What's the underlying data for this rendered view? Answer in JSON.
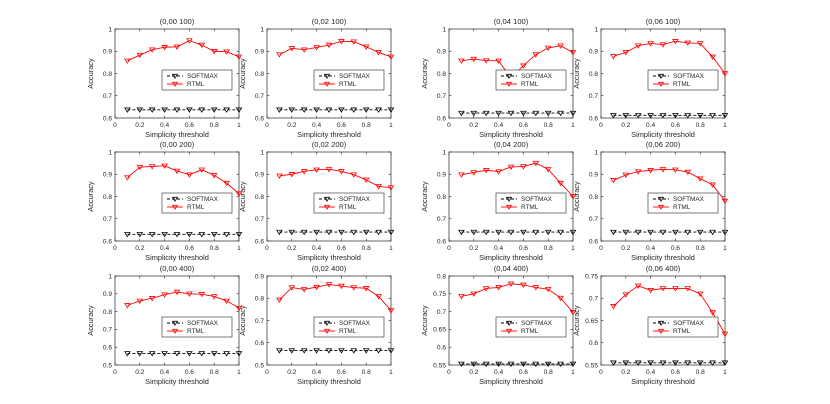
{
  "figure": {
    "colors": {
      "rtml": "#ff0000",
      "softmax": "#000000",
      "axis": "#262626"
    }
  },
  "chart_data": [
    {
      "type": "line",
      "title": "(0,00  100)",
      "xlabel": "Simplicity threshold",
      "ylabel": "Accuracy",
      "xlim": [
        0,
        1
      ],
      "ylim": [
        0.6,
        1
      ],
      "xticks": [
        "0",
        "0.2",
        "0.4",
        "0.6",
        "0.8",
        "1"
      ],
      "yticks": [
        "0.6",
        "0.7",
        "0.8",
        "0.9",
        "1"
      ],
      "legend_position": "center-right",
      "x": [
        0.1,
        0.2,
        0.3,
        0.4,
        0.5,
        0.6,
        0.7,
        0.8,
        0.9,
        1
      ],
      "series": [
        {
          "name": "SOFTMAX",
          "marker": "triangle-down",
          "values": [
            0.637,
            0.637,
            0.637,
            0.637,
            0.637,
            0.637,
            0.637,
            0.637,
            0.637,
            0.637
          ]
        },
        {
          "name": "RTML",
          "marker": "triangle-down",
          "values": [
            0.857,
            0.883,
            0.907,
            0.918,
            0.92,
            0.948,
            0.928,
            0.9,
            0.898,
            0.875
          ]
        }
      ]
    },
    {
      "type": "line",
      "title": "(0,02  100)",
      "xlabel": "Simplicity threshold",
      "ylabel": "Accuracy",
      "xlim": [
        0,
        1
      ],
      "ylim": [
        0.6,
        1
      ],
      "xticks": [
        "0",
        "0.2",
        "0.4",
        "0.6",
        "0.8",
        "1"
      ],
      "yticks": [
        "0.6",
        "0.7",
        "0.8",
        "0.9",
        "1"
      ],
      "legend_position": "center-right",
      "x": [
        0.1,
        0.2,
        0.3,
        0.4,
        0.5,
        0.6,
        0.7,
        0.8,
        0.9,
        1
      ],
      "series": [
        {
          "name": "SOFTMAX",
          "marker": "triangle-down",
          "values": [
            0.637,
            0.637,
            0.637,
            0.637,
            0.637,
            0.637,
            0.637,
            0.637,
            0.637,
            0.637
          ]
        },
        {
          "name": "RTML",
          "marker": "triangle-down",
          "values": [
            0.885,
            0.913,
            0.907,
            0.917,
            0.928,
            0.945,
            0.943,
            0.92,
            0.895,
            0.875
          ]
        }
      ]
    },
    {
      "type": "line",
      "title": "(0,04  100)",
      "xlabel": "Simplicity threshold",
      "ylabel": "Accuracy",
      "xlim": [
        0,
        1
      ],
      "ylim": [
        0.6,
        1
      ],
      "xticks": [
        "0",
        "0.2",
        "0.4",
        "0.6",
        "0.8",
        "1"
      ],
      "yticks": [
        "0.6",
        "0.7",
        "0.8",
        "0.9",
        "1"
      ],
      "legend_position": "center-right",
      "x": [
        0.1,
        0.2,
        0.3,
        0.4,
        0.5,
        0.6,
        0.7,
        0.8,
        0.9,
        1
      ],
      "series": [
        {
          "name": "SOFTMAX",
          "marker": "triangle-down",
          "values": [
            0.622,
            0.622,
            0.622,
            0.622,
            0.622,
            0.622,
            0.622,
            0.622,
            0.622,
            0.622
          ]
        },
        {
          "name": "RTML",
          "marker": "triangle-down",
          "values": [
            0.857,
            0.865,
            0.858,
            0.857,
            0.78,
            0.835,
            0.885,
            0.915,
            0.925,
            0.895
          ]
        }
      ]
    },
    {
      "type": "line",
      "title": "(0,06  100)",
      "xlabel": "Simplicity threshold",
      "ylabel": "Accuracy",
      "xlim": [
        0,
        1
      ],
      "ylim": [
        0.6,
        1
      ],
      "xticks": [
        "0",
        "0.2",
        "0.4",
        "0.6",
        "0.8",
        "1"
      ],
      "yticks": [
        "0.6",
        "0.7",
        "0.8",
        "0.9",
        "1"
      ],
      "legend_position": "center-right",
      "x": [
        0.1,
        0.2,
        0.3,
        0.4,
        0.5,
        0.6,
        0.7,
        0.8,
        0.9,
        1
      ],
      "series": [
        {
          "name": "SOFTMAX",
          "marker": "triangle-down",
          "values": [
            0.612,
            0.612,
            0.612,
            0.612,
            0.612,
            0.612,
            0.612,
            0.612,
            0.612,
            0.612
          ]
        },
        {
          "name": "RTML",
          "marker": "triangle-down",
          "values": [
            0.877,
            0.895,
            0.925,
            0.935,
            0.93,
            0.945,
            0.938,
            0.935,
            0.875,
            0.8
          ]
        }
      ]
    },
    {
      "type": "line",
      "title": "(0,00  200)",
      "xlabel": "Simplicity threshold",
      "ylabel": "Accuracy",
      "xlim": [
        0,
        1
      ],
      "ylim": [
        0.6,
        1
      ],
      "xticks": [
        "0",
        "0.2",
        "0.4",
        "0.6",
        "0.8",
        "1"
      ],
      "yticks": [
        "0.6",
        "0.7",
        "0.8",
        "0.9",
        "1"
      ],
      "legend_position": "center-right",
      "x": [
        0.1,
        0.2,
        0.3,
        0.4,
        0.5,
        0.6,
        0.7,
        0.8,
        0.9,
        1
      ],
      "series": [
        {
          "name": "SOFTMAX",
          "marker": "triangle-down",
          "values": [
            0.63,
            0.63,
            0.63,
            0.63,
            0.63,
            0.63,
            0.63,
            0.63,
            0.63,
            0.63
          ]
        },
        {
          "name": "RTML",
          "marker": "triangle-down",
          "values": [
            0.885,
            0.932,
            0.935,
            0.938,
            0.915,
            0.898,
            0.92,
            0.895,
            0.86,
            0.813
          ]
        }
      ]
    },
    {
      "type": "line",
      "title": "(0,02  200)",
      "xlabel": "Simplicity threshold",
      "ylabel": "Accuracy",
      "xlim": [
        0,
        1
      ],
      "ylim": [
        0.6,
        1
      ],
      "xticks": [
        "0",
        "0.2",
        "0.4",
        "0.6",
        "0.8",
        "1"
      ],
      "yticks": [
        "0.6",
        "0.7",
        "0.8",
        "0.9",
        "1"
      ],
      "legend_position": "center-right",
      "x": [
        0.1,
        0.2,
        0.3,
        0.4,
        0.5,
        0.6,
        0.7,
        0.8,
        0.9,
        1
      ],
      "series": [
        {
          "name": "SOFTMAX",
          "marker": "triangle-down",
          "values": [
            0.64,
            0.64,
            0.64,
            0.64,
            0.64,
            0.64,
            0.64,
            0.64,
            0.64,
            0.64
          ]
        },
        {
          "name": "RTML",
          "marker": "triangle-down",
          "values": [
            0.893,
            0.9,
            0.913,
            0.92,
            0.922,
            0.913,
            0.898,
            0.875,
            0.845,
            0.84
          ]
        }
      ]
    },
    {
      "type": "line",
      "title": "(0,04  200)",
      "xlabel": "Simplicity threshold",
      "ylabel": "Accuracy",
      "xlim": [
        0,
        1
      ],
      "ylim": [
        0.6,
        1
      ],
      "xticks": [
        "0",
        "0.2",
        "0.4",
        "0.6",
        "0.8",
        "1"
      ],
      "yticks": [
        "0.6",
        "0.7",
        "0.8",
        "0.9",
        "1"
      ],
      "legend_position": "center-right",
      "x": [
        0.1,
        0.2,
        0.3,
        0.4,
        0.5,
        0.6,
        0.7,
        0.8,
        0.9,
        1
      ],
      "series": [
        {
          "name": "SOFTMAX",
          "marker": "triangle-down",
          "values": [
            0.64,
            0.64,
            0.64,
            0.64,
            0.64,
            0.64,
            0.64,
            0.64,
            0.64,
            0.64
          ]
        },
        {
          "name": "RTML",
          "marker": "triangle-down",
          "values": [
            0.898,
            0.908,
            0.918,
            0.912,
            0.933,
            0.935,
            0.95,
            0.922,
            0.86,
            0.8
          ]
        }
      ]
    },
    {
      "type": "line",
      "title": "(0,06  200)",
      "xlabel": "Simplicity threshold",
      "ylabel": "Accuracy",
      "xlim": [
        0,
        1
      ],
      "ylim": [
        0.6,
        1
      ],
      "xticks": [
        "0",
        "0.2",
        "0.4",
        "0.6",
        "0.8",
        "1"
      ],
      "yticks": [
        "0.6",
        "0.7",
        "0.8",
        "0.9",
        "1"
      ],
      "legend_position": "center-right",
      "x": [
        0.1,
        0.2,
        0.3,
        0.4,
        0.5,
        0.6,
        0.7,
        0.8,
        0.9,
        1
      ],
      "series": [
        {
          "name": "SOFTMAX",
          "marker": "triangle-down",
          "values": [
            0.64,
            0.64,
            0.64,
            0.64,
            0.64,
            0.64,
            0.64,
            0.64,
            0.64,
            0.64
          ]
        },
        {
          "name": "RTML",
          "marker": "triangle-down",
          "values": [
            0.873,
            0.897,
            0.912,
            0.918,
            0.922,
            0.92,
            0.91,
            0.88,
            0.853,
            0.78
          ]
        }
      ]
    },
    {
      "type": "line",
      "title": "(0,00  400)",
      "xlabel": "Simplicity threshold",
      "ylabel": "Accuracy",
      "xlim": [
        0,
        1
      ],
      "ylim": [
        0.5,
        1
      ],
      "xticks": [
        "0",
        "0.2",
        "0.4",
        "0.6",
        "0.8",
        "1"
      ],
      "yticks": [
        "0.5",
        "0.6",
        "0.7",
        "0.8",
        "0.9",
        "1"
      ],
      "legend_position": "center-right",
      "x": [
        0.1,
        0.2,
        0.3,
        0.4,
        0.5,
        0.6,
        0.7,
        0.8,
        0.9,
        1
      ],
      "series": [
        {
          "name": "SOFTMAX",
          "marker": "triangle-down",
          "values": [
            0.565,
            0.565,
            0.565,
            0.565,
            0.565,
            0.565,
            0.565,
            0.565,
            0.565,
            0.565
          ]
        },
        {
          "name": "RTML",
          "marker": "triangle-down",
          "values": [
            0.835,
            0.86,
            0.875,
            0.895,
            0.91,
            0.9,
            0.898,
            0.885,
            0.86,
            0.82
          ]
        }
      ]
    },
    {
      "type": "line",
      "title": "(0,02  400)",
      "xlabel": "Simplicity threshold",
      "ylabel": "Accuracy",
      "xlim": [
        0,
        1
      ],
      "ylim": [
        0.5,
        0.9
      ],
      "xticks": [
        "0",
        "0.2",
        "0.4",
        "0.6",
        "0.8",
        "1"
      ],
      "yticks": [
        "0.5",
        "0.6",
        "0.7",
        "0.8",
        "0.9"
      ],
      "legend_position": "center-right",
      "x": [
        0.1,
        0.2,
        0.3,
        0.4,
        0.5,
        0.6,
        0.7,
        0.8,
        0.9,
        1
      ],
      "series": [
        {
          "name": "SOFTMAX",
          "marker": "triangle-down",
          "values": [
            0.565,
            0.565,
            0.565,
            0.565,
            0.565,
            0.565,
            0.565,
            0.565,
            0.565,
            0.565
          ]
        },
        {
          "name": "RTML",
          "marker": "triangle-down",
          "values": [
            0.793,
            0.848,
            0.84,
            0.85,
            0.862,
            0.855,
            0.848,
            0.845,
            0.808,
            0.745
          ]
        }
      ]
    },
    {
      "type": "line",
      "title": "(0,04  400)",
      "xlabel": "Simplicity threshold",
      "ylabel": "Accuracy",
      "xlim": [
        0,
        1
      ],
      "ylim": [
        0.55,
        0.8
      ],
      "xticks": [
        "0",
        "0.2",
        "0.4",
        "0.6",
        "0.8",
        "1"
      ],
      "yticks": [
        "0.55",
        "0.6",
        "0.65",
        "0.7",
        "0.75",
        "0.8"
      ],
      "legend_position": "center-right",
      "x": [
        0.1,
        0.2,
        0.3,
        0.4,
        0.5,
        0.6,
        0.7,
        0.8,
        0.9,
        1
      ],
      "series": [
        {
          "name": "SOFTMAX",
          "marker": "triangle-down",
          "values": [
            0.553,
            0.553,
            0.553,
            0.553,
            0.553,
            0.553,
            0.553,
            0.553,
            0.553,
            0.553
          ]
        },
        {
          "name": "RTML",
          "marker": "triangle-down",
          "values": [
            0.743,
            0.75,
            0.765,
            0.768,
            0.778,
            0.775,
            0.768,
            0.763,
            0.738,
            0.698
          ]
        }
      ]
    },
    {
      "type": "line",
      "title": "(0,06  400)",
      "xlabel": "Simplicity threshold",
      "ylabel": "Accuracy",
      "xlim": [
        0,
        1
      ],
      "ylim": [
        0.55,
        0.75
      ],
      "xticks": [
        "0",
        "0.2",
        "0.4",
        "0.6",
        "0.8",
        "1"
      ],
      "yticks": [
        "0.55",
        "0.6",
        "0.65",
        "0.7",
        "0.75"
      ],
      "legend_position": "center-right",
      "x": [
        0.1,
        0.2,
        0.3,
        0.4,
        0.5,
        0.6,
        0.7,
        0.8,
        0.9,
        1
      ],
      "series": [
        {
          "name": "SOFTMAX",
          "marker": "triangle-down",
          "values": [
            0.555,
            0.555,
            0.555,
            0.555,
            0.555,
            0.555,
            0.555,
            0.555,
            0.555,
            0.555
          ]
        },
        {
          "name": "RTML",
          "marker": "triangle-down",
          "values": [
            0.682,
            0.708,
            0.728,
            0.718,
            0.722,
            0.722,
            0.722,
            0.71,
            0.668,
            0.62
          ]
        }
      ]
    }
  ]
}
